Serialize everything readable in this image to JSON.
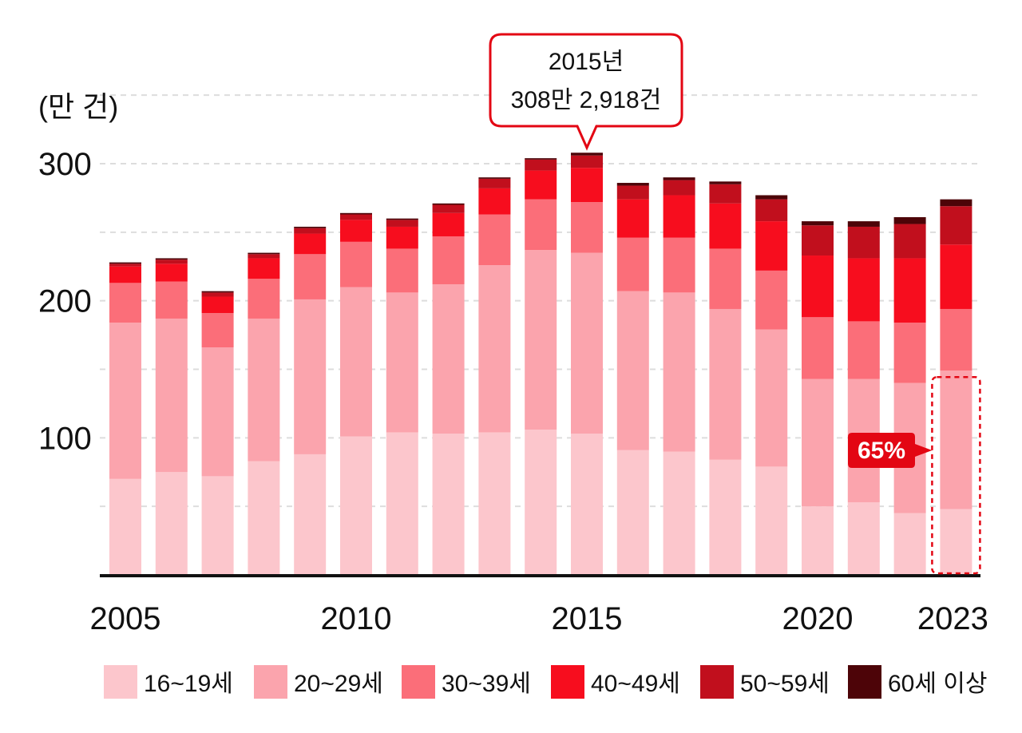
{
  "chart_data": {
    "type": "bar",
    "stacked": true,
    "unit_label": "(만 건)",
    "title": "",
    "xlabel": "",
    "ylabel": "",
    "ylim": [
      0,
      300
    ],
    "yticks": [
      "100",
      "200",
      "300"
    ],
    "xtick_labels": [
      "2005",
      "2010",
      "2015",
      "2020",
      "2023"
    ],
    "categories": [
      "2005",
      "2006",
      "2007",
      "2008",
      "2009",
      "2010",
      "2011",
      "2012",
      "2013",
      "2014",
      "2015",
      "2016",
      "2017",
      "2018",
      "2019",
      "2020",
      "2021",
      "2022",
      "2023"
    ],
    "series": [
      {
        "name": "16~19세",
        "color": "#fcc6cc",
        "values": [
          70,
          75,
          72,
          83,
          88,
          101,
          104,
          103,
          104,
          106,
          103,
          91,
          90,
          84,
          79,
          50,
          53,
          45,
          48
        ]
      },
      {
        "name": "20~29세",
        "color": "#fba4ad",
        "values": [
          114,
          112,
          94,
          104,
          113,
          109,
          102,
          109,
          122,
          131,
          132,
          116,
          116,
          110,
          100,
          93,
          90,
          95,
          101
        ]
      },
      {
        "name": "30~39세",
        "color": "#fb6e79",
        "values": [
          29,
          27,
          25,
          29,
          33,
          33,
          32,
          35,
          37,
          37,
          37,
          39,
          40,
          44,
          43,
          45,
          42,
          44,
          45
        ]
      },
      {
        "name": "40~49세",
        "color": "#f70d1e",
        "values": [
          12,
          13,
          12,
          15,
          15,
          16,
          16,
          17,
          19,
          21,
          25,
          28,
          31,
          33,
          36,
          45,
          46,
          47,
          47
        ]
      },
      {
        "name": "50~59세",
        "color": "#c10f1d",
        "values": [
          2,
          3,
          3,
          3,
          4,
          4,
          5,
          6,
          7,
          8,
          9,
          10,
          11,
          14,
          16,
          22,
          23,
          25,
          28
        ]
      },
      {
        "name": "60세 이상",
        "color": "#4d0408",
        "values": [
          1,
          1,
          1,
          1,
          1,
          1,
          1,
          1,
          1,
          1,
          2,
          2,
          2,
          2,
          3,
          3,
          4,
          5,
          5
        ]
      }
    ],
    "annotations": {
      "peak": {
        "year": "2015",
        "line1": "2015년",
        "line2": "308만 2,918건"
      },
      "highlight": {
        "year": "2023",
        "label": "65%"
      }
    },
    "accent_color": "#e30613",
    "grid": true,
    "legend_position": "bottom"
  }
}
